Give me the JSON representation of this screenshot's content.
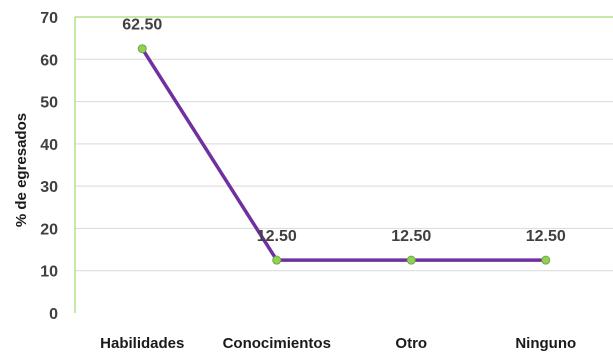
{
  "chart_data": {
    "type": "line",
    "categories": [
      "Habilidades",
      "Conocimientos",
      "Otro",
      "Ninguno"
    ],
    "series": [
      {
        "values": [
          62.5,
          12.5,
          12.5,
          12.5
        ]
      }
    ],
    "data_labels": [
      "62.50",
      "12.50",
      "12.50",
      "12.50"
    ],
    "title": "",
    "xlabel": "",
    "ylabel": "% de egresados",
    "ylim": [
      0,
      70
    ],
    "yticks": [
      0,
      10,
      20,
      30,
      40,
      50,
      60,
      70
    ],
    "grid": "horizontal",
    "colors": {
      "line": "#7030a0",
      "marker": "#92d050",
      "grid": "#d9d9d9",
      "axis": "#92d050"
    }
  }
}
